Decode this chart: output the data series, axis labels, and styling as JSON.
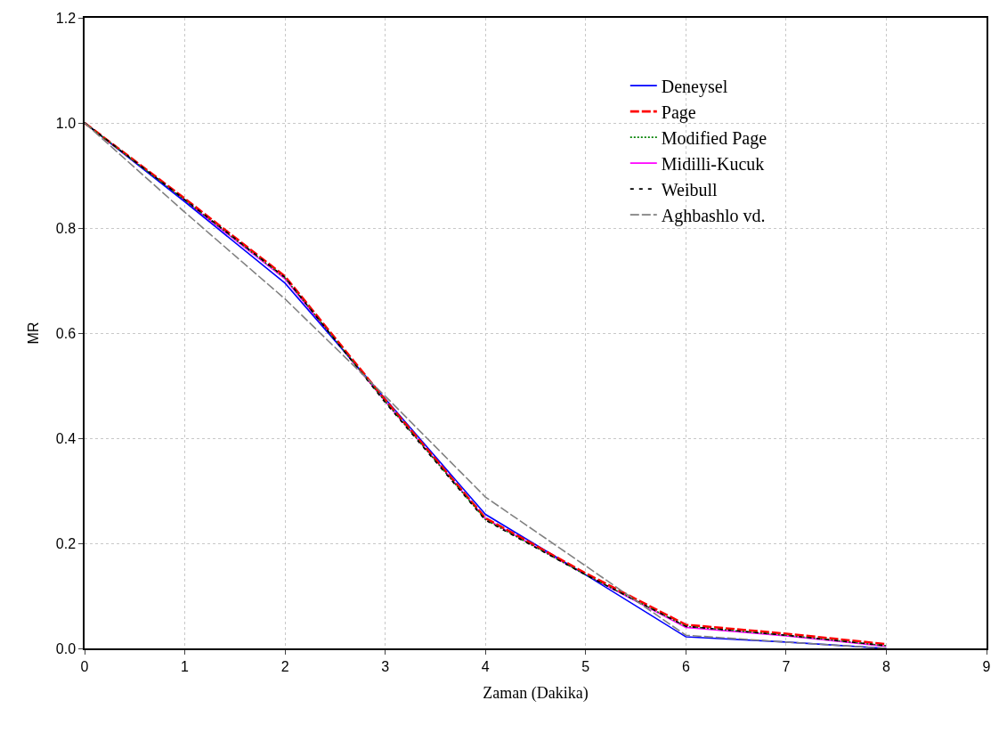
{
  "chart_data": {
    "type": "line",
    "xlabel": "Zaman (Dakika)",
    "ylabel": "MR",
    "x": [
      0,
      1,
      2,
      3,
      4,
      5,
      6,
      7,
      8
    ],
    "series": [
      {
        "name": "Deneysel",
        "color": "#0000ff",
        "line_style": "solid",
        "values": [
          1.0,
          0.85,
          0.695,
          0.475,
          0.255,
          0.14,
          0.022,
          0.012,
          0.0
        ]
      },
      {
        "name": "Page",
        "color": "#ff0000",
        "line_style": "dashed",
        "values": [
          1.0,
          0.856,
          0.708,
          0.473,
          0.248,
          0.143,
          0.045,
          0.028,
          0.008
        ]
      },
      {
        "name": "Modified Page",
        "color": "#008000",
        "line_style": "dotted",
        "values": [
          1.0,
          0.853,
          0.705,
          0.47,
          0.245,
          0.14,
          0.042,
          0.025,
          0.005
        ]
      },
      {
        "name": "Midilli-Kucuk",
        "color": "#ff00ff",
        "line_style": "solid",
        "values": [
          1.0,
          0.852,
          0.703,
          0.47,
          0.247,
          0.14,
          0.04,
          0.024,
          0.004
        ]
      },
      {
        "name": "Weibull",
        "color": "#000000",
        "line_style": "dashed",
        "values": [
          1.0,
          0.854,
          0.706,
          0.468,
          0.244,
          0.14,
          0.042,
          0.025,
          0.005
        ]
      },
      {
        "name": "Aghbashlo vd.",
        "color": "#808080",
        "line_style": "dashed",
        "values": [
          1.0,
          0.83,
          0.665,
          0.48,
          0.288,
          0.157,
          0.025,
          0.012,
          0.0
        ]
      }
    ],
    "xlim": [
      0,
      9
    ],
    "xticks": [
      0,
      1,
      2,
      3,
      4,
      5,
      6,
      7,
      8,
      9
    ],
    "ylim": [
      0,
      1.2
    ],
    "yticks": [
      {
        "value": 0,
        "label": "0.0"
      },
      {
        "value": 0.2,
        "label": "0.2"
      },
      {
        "value": 0.4,
        "label": "0.4"
      },
      {
        "value": 0.6,
        "label": "0.6"
      },
      {
        "value": 0.8,
        "label": "0.8"
      },
      {
        "value": 1.0,
        "label": "1.0"
      },
      {
        "value": 1.2,
        "label": "1.2"
      }
    ],
    "grid": true,
    "legend": "top right",
    "marker": "none"
  }
}
